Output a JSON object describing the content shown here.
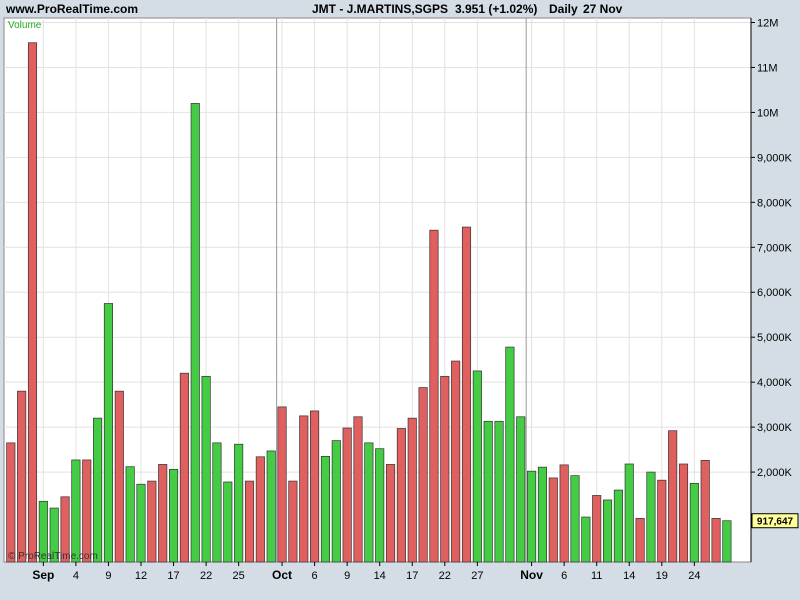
{
  "header": {
    "site": "www.ProRealTime.com",
    "symbol": "JMT - J.MARTINS,SGPS",
    "price": "3.951 (+1.02%)",
    "period": "Daily",
    "date": "27 Nov"
  },
  "panel_label": "Volume",
  "watermark": "© ProRealTime.com",
  "current_value_label": "917,647",
  "colors": {
    "up": "#44cc44",
    "down": "#e06060",
    "background": "#ffffff",
    "grid": "#e2e2e2",
    "label_box": "#ffff99",
    "panel_label": "#22aa22"
  },
  "chart_data": {
    "type": "bar",
    "title": "JMT - J.MARTINS,SGPS",
    "ylabel": "",
    "xlabel": "",
    "ylim": [
      0,
      12100000
    ],
    "yticks": [
      2000000,
      3000000,
      4000000,
      5000000,
      6000000,
      7000000,
      8000000,
      9000000,
      10000000,
      11000000,
      12000000
    ],
    "ytick_labels": [
      "2,000K",
      "3,000K",
      "4,000K",
      "5,000K",
      "6,000K",
      "7,000K",
      "8,000K",
      "9,000K",
      "10M",
      "11M",
      "12M"
    ],
    "xticks": [
      {
        "index": 3,
        "label": "Sep",
        "bold": true
      },
      {
        "index": 6,
        "label": "4"
      },
      {
        "index": 9,
        "label": "9"
      },
      {
        "index": 12,
        "label": "12"
      },
      {
        "index": 15,
        "label": "17"
      },
      {
        "index": 18,
        "label": "22"
      },
      {
        "index": 21,
        "label": "25"
      },
      {
        "index": 25,
        "label": "Oct",
        "bold": true
      },
      {
        "index": 28,
        "label": "6"
      },
      {
        "index": 31,
        "label": "9"
      },
      {
        "index": 34,
        "label": "14"
      },
      {
        "index": 37,
        "label": "17"
      },
      {
        "index": 40,
        "label": "22"
      },
      {
        "index": 43,
        "label": "27"
      },
      {
        "index": 48,
        "label": "Nov",
        "bold": true
      },
      {
        "index": 51,
        "label": "6"
      },
      {
        "index": 54,
        "label": "11"
      },
      {
        "index": 57,
        "label": "14"
      },
      {
        "index": 60,
        "label": "19"
      },
      {
        "index": 63,
        "label": "24"
      }
    ],
    "month_separators": [
      25,
      48
    ],
    "values": [
      2650000,
      3800000,
      11550000,
      1350000,
      1200000,
      1450000,
      2270000,
      2270000,
      3200000,
      5750000,
      3800000,
      2120000,
      1730000,
      1800000,
      2170000,
      2060000,
      4200000,
      10200000,
      4130000,
      2650000,
      1780000,
      2620000,
      1800000,
      2340000,
      2470000,
      3450000,
      1800000,
      3250000,
      3360000,
      2350000,
      2700000,
      2980000,
      3230000,
      2650000,
      2520000,
      2170000,
      2970000,
      3200000,
      3880000,
      7380000,
      4130000,
      4470000,
      7450000,
      4250000,
      3130000,
      3130000,
      4780000,
      3230000,
      2020000,
      2110000,
      1870000,
      2160000,
      1920000,
      1000000,
      1480000,
      1380000,
      1600000,
      2180000,
      970000,
      2000000,
      1820000,
      2920000,
      2180000,
      1750000,
      2260000,
      970000,
      918000
    ],
    "colors": [
      "down",
      "down",
      "down",
      "up",
      "up",
      "down",
      "up",
      "down",
      "up",
      "up",
      "down",
      "up",
      "up",
      "down",
      "down",
      "up",
      "down",
      "up",
      "up",
      "up",
      "up",
      "up",
      "down",
      "down",
      "up",
      "down",
      "down",
      "down",
      "down",
      "up",
      "up",
      "down",
      "down",
      "up",
      "up",
      "down",
      "down",
      "down",
      "down",
      "down",
      "down",
      "down",
      "down",
      "up",
      "up",
      "up",
      "up",
      "up",
      "up",
      "up",
      "down",
      "down",
      "up",
      "up",
      "down",
      "up",
      "up",
      "up",
      "down",
      "up",
      "down",
      "down",
      "down",
      "up",
      "down",
      "down",
      "up"
    ]
  }
}
